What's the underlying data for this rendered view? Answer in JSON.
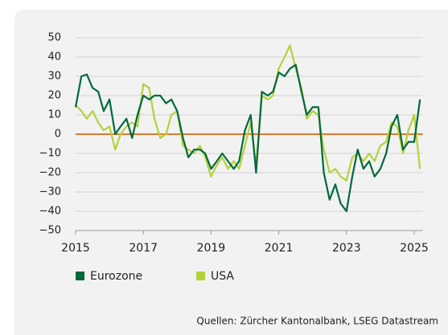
{
  "chart_data": {
    "type": "line",
    "x": [
      2015.0,
      2015.17,
      2015.33,
      2015.5,
      2015.67,
      2015.83,
      2016.0,
      2016.17,
      2016.33,
      2016.5,
      2016.67,
      2016.83,
      2017.0,
      2017.17,
      2017.33,
      2017.5,
      2017.67,
      2017.83,
      2018.0,
      2018.17,
      2018.33,
      2018.5,
      2018.67,
      2018.83,
      2019.0,
      2019.17,
      2019.33,
      2019.5,
      2019.67,
      2019.83,
      2020.0,
      2020.17,
      2020.33,
      2020.5,
      2020.67,
      2020.83,
      2021.0,
      2021.17,
      2021.33,
      2021.5,
      2021.67,
      2021.83,
      2022.0,
      2022.17,
      2022.33,
      2022.5,
      2022.67,
      2022.83,
      2023.0,
      2023.17,
      2023.33,
      2023.5,
      2023.67,
      2023.83,
      2024.0,
      2024.17,
      2024.33,
      2024.5,
      2024.67,
      2024.83,
      2025.0,
      2025.17
    ],
    "series": [
      {
        "name": "Eurozone",
        "color": "#00693c",
        "values": [
          14,
          30,
          31,
          24,
          22,
          12,
          18,
          0,
          4,
          8,
          -2,
          10,
          20,
          18,
          20,
          20,
          16,
          18,
          12,
          -2,
          -12,
          -8,
          -8,
          -10,
          -18,
          -14,
          -10,
          -14,
          -18,
          -14,
          2,
          10,
          -20,
          22,
          20,
          22,
          32,
          30,
          34,
          36,
          22,
          10,
          14,
          14,
          -20,
          -34,
          -26,
          -36,
          -40,
          -22,
          -8,
          -18,
          -14,
          -22,
          -18,
          -10,
          4,
          10,
          -8,
          -4,
          -4,
          18
        ]
      },
      {
        "name": "USA",
        "color": "#b3d23b",
        "values": [
          15,
          12,
          8,
          12,
          6,
          2,
          4,
          -8,
          0,
          4,
          6,
          4,
          26,
          24,
          8,
          -2,
          0,
          10,
          12,
          -6,
          -8,
          -10,
          -6,
          -12,
          -22,
          -16,
          -12,
          -18,
          -14,
          -18,
          -6,
          6,
          -16,
          20,
          18,
          20,
          34,
          40,
          46,
          34,
          24,
          8,
          12,
          10,
          -8,
          -20,
          -18,
          -22,
          -24,
          -12,
          -10,
          -14,
          -10,
          -14,
          -6,
          -4,
          6,
          4,
          -10,
          2,
          10,
          -18
        ]
      }
    ],
    "xlim": [
      2015,
      2025.25
    ],
    "xticks": [
      2015,
      2017,
      2019,
      2021,
      2023,
      2025
    ],
    "ylim": [
      -50,
      50
    ],
    "yticks": [
      {
        "value": -50,
        "label": "−50"
      },
      {
        "value": -40,
        "label": "−40"
      },
      {
        "value": -30,
        "label": "−30"
      },
      {
        "value": -20,
        "label": "−20"
      },
      {
        "value": -10,
        "label": "−10"
      },
      0,
      10,
      20,
      30,
      40,
      50
    ],
    "grid": true,
    "reference_line": {
      "value": 0,
      "color": "#e8772e"
    },
    "source": "Quellen: Zürcher Kantonalbank, LSEG Datastream"
  }
}
